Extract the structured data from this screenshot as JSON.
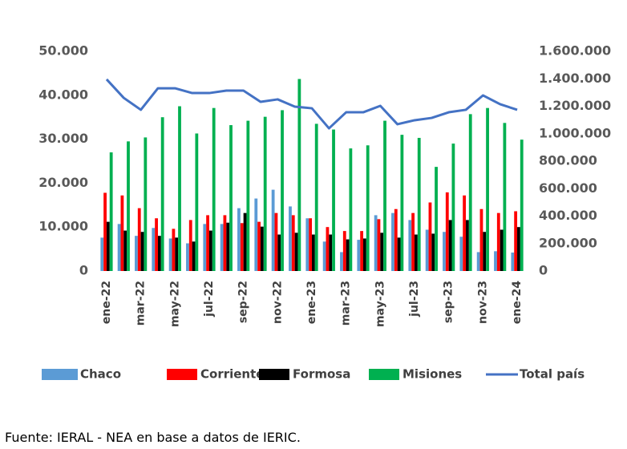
{
  "chart_data": {
    "type": "bar_line",
    "categories": [
      "ene-22",
      null,
      "mar-22",
      null,
      "may-22",
      null,
      "jul-22",
      null,
      "sep-22",
      null,
      "nov-22",
      null,
      "ene-23",
      null,
      "mar-23",
      null,
      "may-23",
      null,
      "jul-23",
      null,
      "sep-23",
      null,
      "nov-23",
      null,
      "ene-24"
    ],
    "series": [
      {
        "name": "Chaco",
        "color": "#5b9bd5",
        "values": [
          7600,
          10700,
          8000,
          9800,
          7400,
          6300,
          10700,
          10700,
          14300,
          16500,
          18500,
          14700,
          12000,
          6700,
          4300,
          7100,
          12700,
          13200,
          11600,
          9400,
          8900,
          7800,
          4300,
          4500,
          4200
        ]
      },
      {
        "name": "Corrientes",
        "color": "#ff0000",
        "values": [
          17800,
          17200,
          14300,
          12000,
          9600,
          11600,
          12700,
          12700,
          10900,
          11200,
          13200,
          12700,
          12000,
          10000,
          9100,
          9100,
          11800,
          14100,
          13200,
          15600,
          17900,
          17200,
          14100,
          13200,
          13600
        ]
      },
      {
        "name": "Formosa",
        "color": "#000000",
        "values": [
          11200,
          9200,
          8900,
          8000,
          7600,
          6700,
          9200,
          11000,
          13200,
          10100,
          8300,
          8700,
          8300,
          8300,
          7200,
          7400,
          8700,
          7600,
          8300,
          8500,
          11600,
          11600,
          8900,
          9400,
          10000
        ]
      },
      {
        "name": "Misiones",
        "color": "#00b050",
        "values": [
          27000,
          29500,
          30400,
          35000,
          37500,
          31300,
          37100,
          33200,
          34200,
          35100,
          36600,
          43700,
          33500,
          32200,
          27900,
          28600,
          34200,
          31000,
          30300,
          23700,
          29000,
          35700,
          37100,
          33700,
          29900
        ]
      },
      {
        "name": "Total país",
        "color": "#4472c4",
        "axis": "y2",
        "values": [
          1396000,
          1261000,
          1174000,
          1331000,
          1331000,
          1296000,
          1296000,
          1314000,
          1314000,
          1232000,
          1250000,
          1197000,
          1185000,
          1039000,
          1156000,
          1156000,
          1203000,
          1069000,
          1098000,
          1115000,
          1156000,
          1174000,
          1279000,
          1215000,
          1174000
        ]
      }
    ],
    "ylim": [
      0,
      50000
    ],
    "yticks": [
      0,
      {
        "value": 10000,
        "label": "10.000"
      },
      {
        "value": 20000,
        "label": "20.000"
      },
      {
        "value": 30000,
        "label": "30.000"
      },
      {
        "value": 40000,
        "label": "40.000"
      },
      {
        "value": 50000,
        "label": "50.000"
      }
    ],
    "y2lim": [
      0,
      1600000
    ],
    "y2ticks": [
      0,
      {
        "value": 200000,
        "label": "200.000"
      },
      {
        "value": 400000,
        "label": "400.000"
      },
      {
        "value": 600000,
        "label": "600.000"
      },
      {
        "value": 800000,
        "label": "800.000"
      },
      {
        "value": 1000000,
        "label": "1.000.000"
      },
      {
        "value": 1200000,
        "label": "1.200.000"
      },
      {
        "value": 1400000,
        "label": "1.400.000"
      },
      {
        "value": 1600000,
        "label": "1.600.000"
      }
    ],
    "grid": false,
    "legend": "bottom",
    "source": "Fuente: IERAL - NEA en base a datos de IERIC."
  }
}
